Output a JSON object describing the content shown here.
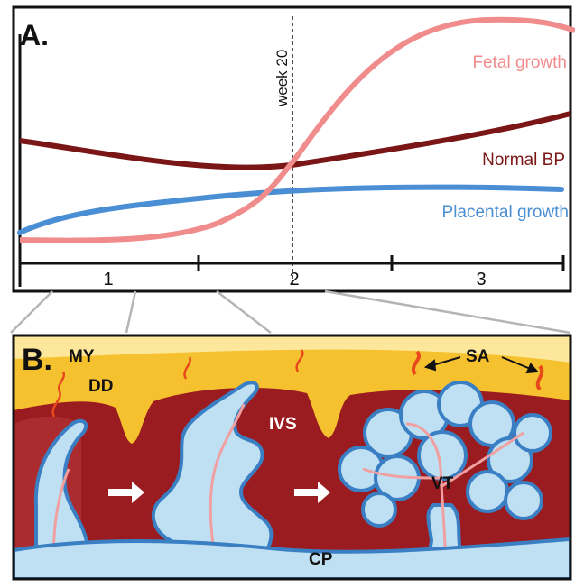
{
  "panel_a": {
    "label": "A.",
    "marker_label": "week 20",
    "curves": {
      "fetal": {
        "label": "Fetal growth",
        "color": "#f08c8c"
      },
      "bp": {
        "label": "Normal BP",
        "color": "#7a1616"
      },
      "placental": {
        "label": "Placental growth",
        "color": "#4a8fd4"
      }
    },
    "trimesters": [
      "1",
      "2",
      "3"
    ]
  },
  "panel_b": {
    "label": "B.",
    "regions": {
      "my": "MY",
      "dd": "DD",
      "sa": "SA",
      "ivs": "IVS",
      "vt": "VT",
      "cp": "CP"
    },
    "colors": {
      "myometrium": "#fde79a",
      "decidua": "#f6c12e",
      "ivs": "#9b1c20",
      "villi_fill": "#bfe0f2",
      "villi_edge": "#3a7fc4",
      "vessel": "#f0a0a0",
      "artery": "#e8481c"
    }
  }
}
